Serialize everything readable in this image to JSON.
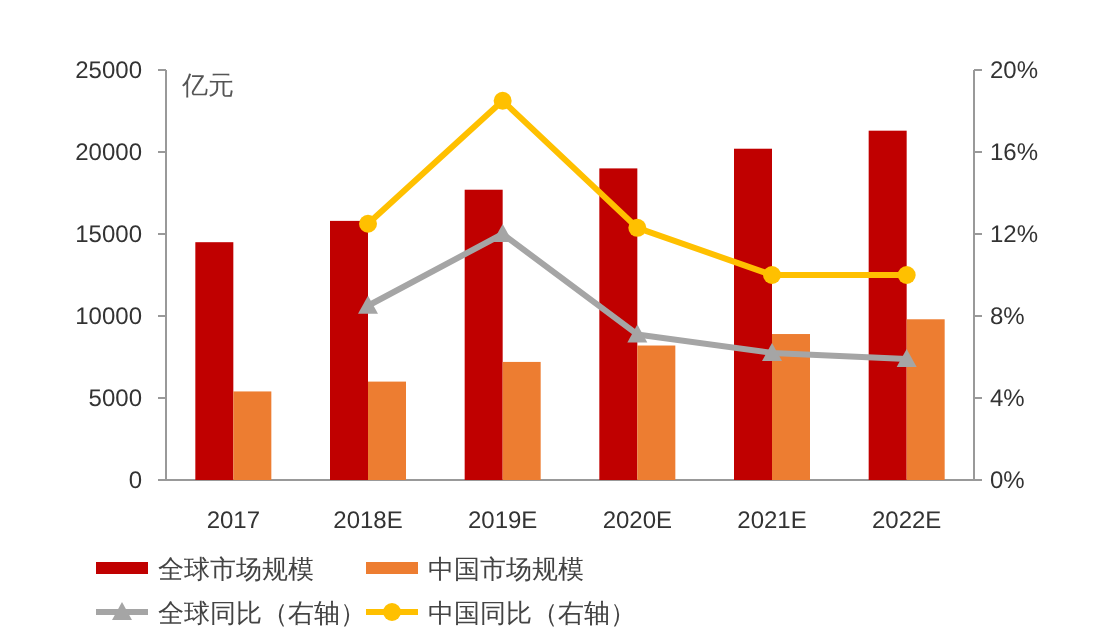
{
  "chart_data": {
    "type": "bar",
    "ylabel": "亿元",
    "categories": [
      "2017",
      "2018E",
      "2019E",
      "2020E",
      "2021E",
      "2022E"
    ],
    "series": [
      {
        "name": "全球市场规模",
        "color": "#c00000",
        "values": [
          14500,
          15800,
          17700,
          19000,
          20200,
          21300
        ]
      },
      {
        "name": "中国市场规模",
        "color": "#ed7d31",
        "values": [
          5400,
          6000,
          7200,
          8200,
          8900,
          9800
        ]
      },
      {
        "name": "全球同比（右轴）",
        "type": "line",
        "axis": "y2",
        "marker": "triangle",
        "color": "#a5a5a5",
        "values": [
          null,
          8.5,
          12.0,
          7.1,
          6.2,
          5.9
        ]
      },
      {
        "name": "中国同比（右轴）",
        "type": "line",
        "axis": "y2",
        "marker": "circle",
        "color": "#ffc000",
        "values": [
          null,
          12.5,
          18.5,
          12.3,
          10.0,
          10.0
        ]
      }
    ],
    "ylim": [
      0,
      25000
    ],
    "yticks": [
      0,
      5000,
      10000,
      15000,
      20000,
      25000
    ],
    "y2lim": [
      0,
      20
    ],
    "y2ticks": [
      {
        "value": 0,
        "label": "0%"
      },
      {
        "value": 4,
        "label": "4%"
      },
      {
        "value": 8,
        "label": "8%"
      },
      {
        "value": 12,
        "label": "12%"
      },
      {
        "value": 16,
        "label": "16%"
      },
      {
        "value": 20,
        "label": "20%"
      }
    ],
    "legend": "bottom",
    "grid": false
  }
}
